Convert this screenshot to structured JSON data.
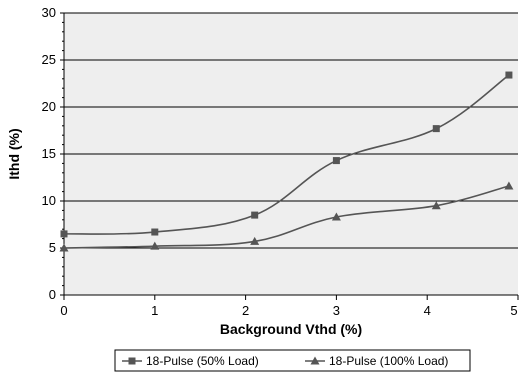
{
  "chart_data": {
    "type": "line",
    "xlabel": "Background Vthd (%)",
    "ylabel": "Ithd (%)",
    "xlim": [
      0,
      5
    ],
    "ylim": [
      0,
      30
    ],
    "x_ticks": [
      "0",
      "1",
      "2",
      "3",
      "4",
      "5"
    ],
    "y_ticks": [
      "0",
      "5",
      "10",
      "15",
      "20",
      "25",
      "30"
    ],
    "grid": "horizontal",
    "plot_background": "#eeeeee",
    "line_color": "#555555",
    "legend_position": "bottom",
    "series": [
      {
        "name": "18-Pulse (50% Load)",
        "marker": "square",
        "x": [
          0,
          1,
          2.1,
          3,
          4.1,
          4.9
        ],
        "y": [
          6.5,
          6.7,
          8.5,
          14.3,
          17.7,
          23.4
        ]
      },
      {
        "name": "18-Pulse (100% Load)",
        "marker": "triangle",
        "x": [
          0,
          1,
          2.1,
          3,
          4.1,
          4.9
        ],
        "y": [
          5.0,
          5.2,
          5.7,
          8.3,
          9.5,
          11.6
        ]
      }
    ]
  }
}
